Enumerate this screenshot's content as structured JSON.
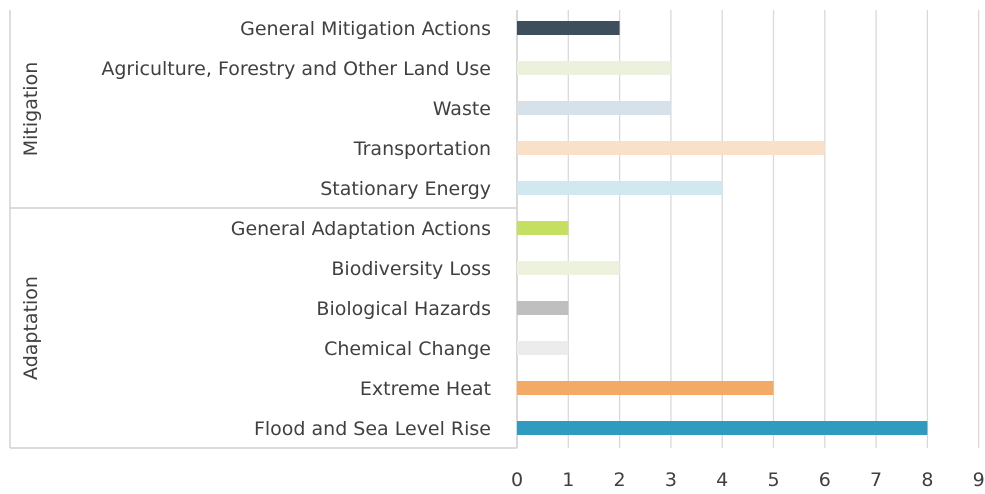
{
  "chart_data": {
    "type": "bar",
    "orientation": "horizontal",
    "title": "",
    "xlabel": "",
    "ylabel": "",
    "xlim": [
      0,
      9
    ],
    "ticks": [
      "0",
      "1",
      "2",
      "3",
      "4",
      "5",
      "6",
      "7",
      "8",
      "9"
    ],
    "grid": true,
    "legend": "none",
    "groups": [
      {
        "name": "Mitigation",
        "categories": [
          {
            "label": "General Mitigation Actions",
            "value": 2,
            "color": "#3e4e5c"
          },
          {
            "label": "Agriculture, Forestry and Other Land Use",
            "value": 3,
            "color": "#ebf1dc"
          },
          {
            "label": "Waste",
            "value": 3,
            "color": "#d6e1ea"
          },
          {
            "label": "Transportation",
            "value": 6,
            "color": "#f8e0c9"
          },
          {
            "label": "Stationary Energy",
            "value": 4,
            "color": "#d2e8f1"
          }
        ]
      },
      {
        "name": "Adaptation",
        "categories": [
          {
            "label": "General Adaptation Actions",
            "value": 1,
            "color": "#c5e061"
          },
          {
            "label": "Biodiversity Loss",
            "value": 2,
            "color": "#ecf2de"
          },
          {
            "label": "Biological Hazards",
            "value": 1,
            "color": "#bfbfbf"
          },
          {
            "label": "Chemical Change",
            "value": 1,
            "color": "#ececec"
          },
          {
            "label": "Extreme Heat",
            "value": 5,
            "color": "#f2aa66"
          },
          {
            "label": "Flood and Sea Level Rise",
            "value": 8,
            "color": "#2e9bbf"
          }
        ]
      }
    ]
  }
}
